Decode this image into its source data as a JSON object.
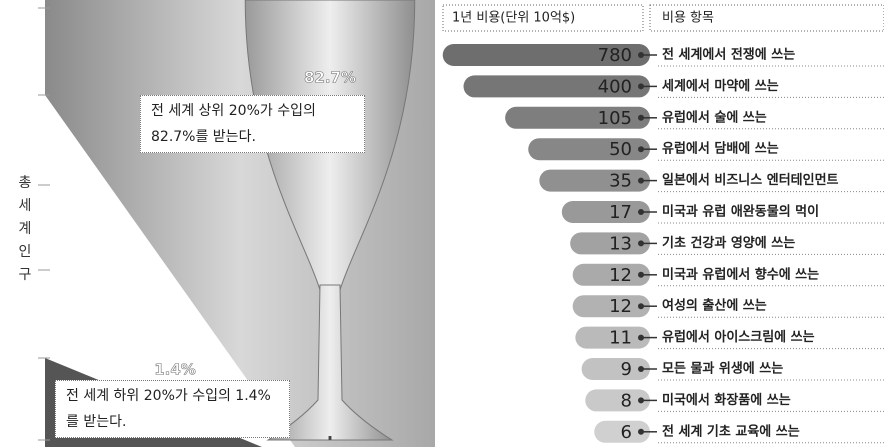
{
  "chart_data": [
    {
      "type": "glass",
      "y_label": "총 세계 인구",
      "values": [
        82.7,
        1.4
      ],
      "value_labels": [
        "82.7%",
        "1.4%"
      ],
      "annotations": [
        "전 세계 상위 20%가 수입의 82.7%를 받는다.",
        "전 세계 하위 20%가 수입의 1.4%를 받는다."
      ]
    },
    {
      "type": "bar",
      "orientation": "horizontal",
      "value_header": "1년 비용(단위 10억$)",
      "category_header": "비용 항목",
      "categories": [
        "전 세계에서 전쟁에 쓰는",
        "세계에서 마약에 쓰는",
        "유럽에서 술에 쓰는",
        "유럽에서 담배에 쓰는",
        "일본에서 비즈니스 엔터테인먼트",
        "미국과 유럽 애완동물의 먹이",
        "기초 건강과 영양에 쓰는",
        "미국과 유럽에서 향수에 쓰는",
        "여성의 출산에 쓰는",
        "유럽에서 아이스크림에 쓰는",
        "모든 물과 위생에 쓰는",
        "미국에서 화장품에 쓰는",
        "전 세계 기초 교육에 쓰는"
      ],
      "values": [
        780,
        400,
        105,
        50,
        35,
        17,
        13,
        12,
        12,
        11,
        9,
        8,
        6
      ],
      "colors": [
        "#6e6e6e",
        "#767676",
        "#7e7e7e",
        "#878787",
        "#909090",
        "#999999",
        "#a2a2a2",
        "#aaaaaa",
        "#b2b2b2",
        "#bababa",
        "#c2c2c2",
        "#c9c9c9",
        "#d0d0d0"
      ],
      "log_scale": true,
      "xlim": [
        1,
        1000
      ]
    }
  ]
}
